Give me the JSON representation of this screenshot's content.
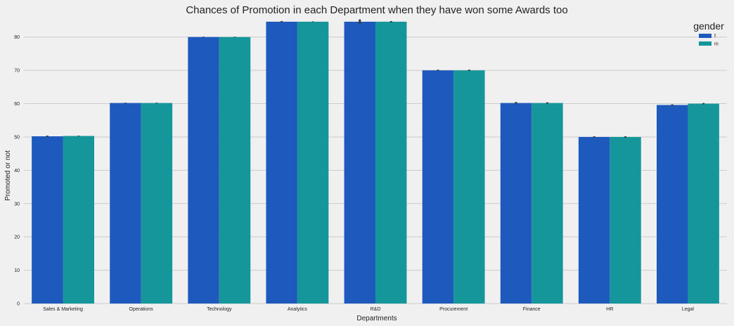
{
  "chart_data": {
    "type": "bar",
    "title": "Chances of Promotion in each Department when they have won some Awards too",
    "xlabel": "Departments",
    "ylabel": "Promoted or not",
    "categories": [
      "Sales & Marketing",
      "Operations",
      "Technology",
      "Analytics",
      "R&D",
      "Procurement",
      "Finance",
      "HR",
      "Legal"
    ],
    "series": [
      {
        "name": "f",
        "values": [
          50.2,
          60.2,
          80.0,
          84.6,
          84.6,
          70.0,
          60.2,
          50.0,
          59.6
        ]
      },
      {
        "name": "m",
        "values": [
          50.3,
          60.2,
          80.0,
          84.6,
          84.6,
          70.0,
          60.2,
          50.0,
          60.0
        ]
      }
    ],
    "error_bars": {
      "f": [
        0.2,
        0.1,
        0.1,
        0.2,
        0.7,
        0.2,
        0.3,
        0.2,
        0.2
      ],
      "m": [
        0.1,
        0.1,
        0.1,
        0.1,
        0.2,
        0.2,
        0.2,
        0.2,
        0.2
      ]
    },
    "ylim": [
      0,
      85
    ],
    "yticks": [
      0,
      10,
      20,
      30,
      40,
      50,
      60,
      70,
      80
    ],
    "grid": true,
    "legend": {
      "title": "gender",
      "position": "top-right"
    },
    "colors": {
      "f": "#1e5abe",
      "m": "#14969a",
      "grid": "#cbcbcb",
      "errorbar": "#3c3c3c",
      "background": "#f0f0f0"
    }
  }
}
